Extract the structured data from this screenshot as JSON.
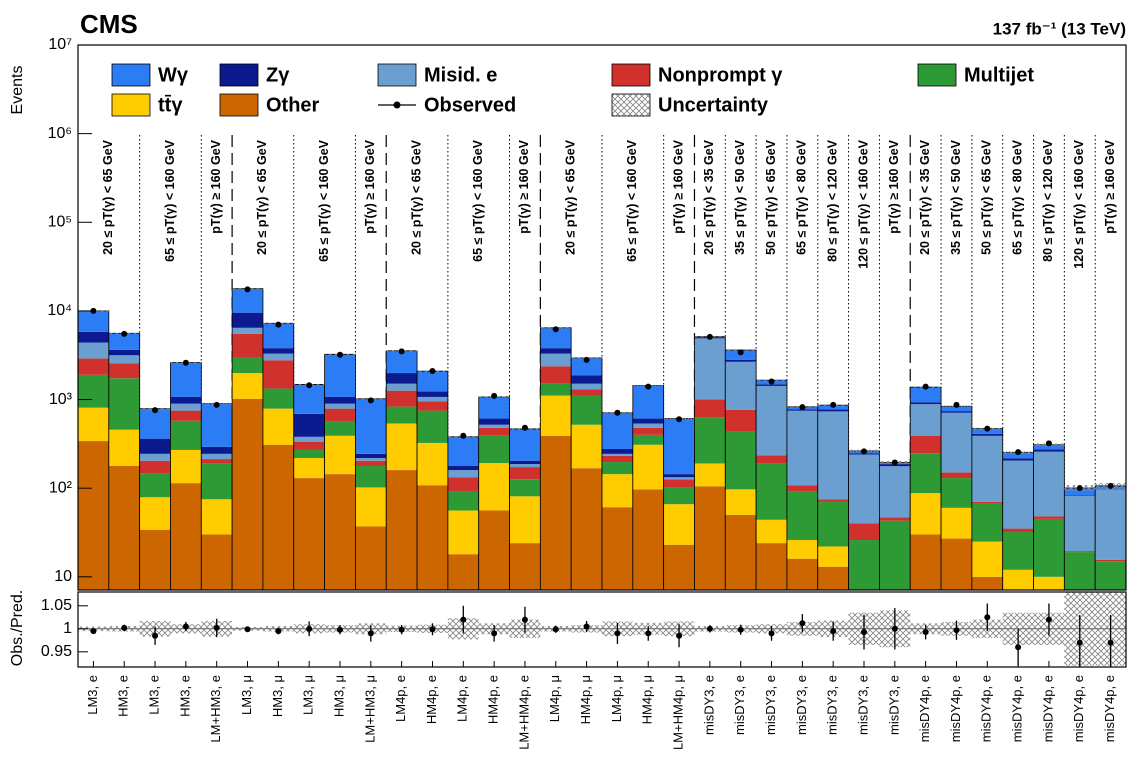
{
  "chart_data": {
    "type": "stacked_bar",
    "title": "CMS",
    "subtitle": "137 fb⁻¹ (13 TeV)",
    "ylabel": "Events",
    "log_scale": true,
    "categories": [
      "LM3, e",
      "HM3, e",
      "LM3, e",
      "HM3, e",
      "LM+HM3, e",
      "LM3, μ",
      "HM3, μ",
      "LM3, μ",
      "HM3, μ",
      "LM+HM3, μ",
      "LM4p, e",
      "HM4p, e",
      "LM4p, e",
      "HM4p, e",
      "LM+HM4p, e",
      "LM4p, μ",
      "HM4p, μ",
      "LM4p, μ",
      "HM4p, μ",
      "LM+HM4p, μ",
      "misDY3, e",
      "misDY3, e",
      "misDY3, e",
      "misDY3, e",
      "misDY3, e",
      "misDY3, e",
      "misDY3, e",
      "misDY4p, e",
      "misDY4p, e",
      "misDY4p, e",
      "misDY4p, e",
      "misDY4p, e",
      "misDY4p, e",
      "misDY4p, e"
    ],
    "region_labels": [
      "20 ≤ pT(γ) < 65 GeV",
      null,
      "65 ≤ pT(γ) < 160 GeV",
      null,
      "pT(γ) ≥ 160 GeV",
      "20 ≤ pT(γ) < 65 GeV",
      null,
      "65 ≤ pT(γ) < 160 GeV",
      null,
      "pT(γ) ≥ 160 GeV",
      "20 ≤ pT(γ) < 65 GeV",
      null,
      "65 ≤ pT(γ) < 160 GeV",
      null,
      "pT(γ) ≥ 160 GeV",
      "20 ≤ pT(γ) < 65 GeV",
      null,
      "65 ≤ pT(γ) < 160 GeV",
      null,
      "pT(γ) ≥ 160 GeV",
      "20 ≤ pT(γ) < 35 GeV",
      "35 ≤ pT(γ) < 50 GeV",
      "50 ≤ pT(γ) < 65 GeV",
      "65 ≤ pT(γ) < 80 GeV",
      "80 ≤ pT(γ) < 120 GeV",
      "120 ≤ pT(γ) < 160 GeV",
      "pT(γ) ≥ 160 GeV",
      "20 ≤ pT(γ) < 35 GeV",
      "35 ≤ pT(γ) < 50 GeV",
      "50 ≤ pT(γ) < 65 GeV",
      "65 ≤ pT(γ) < 80 GeV",
      "80 ≤ pT(γ) < 120 GeV",
      "120 ≤ pT(γ) < 160 GeV",
      "pT(γ) ≥ 160 GeV"
    ],
    "ylim": [
      7.1,
      10000000
    ],
    "yticks": [
      10,
      {
        "value": 100,
        "label": "10²"
      },
      {
        "value": 1000,
        "label": "10³"
      },
      {
        "value": 10000,
        "label": "10⁴"
      },
      {
        "value": 100000,
        "label": "10⁵"
      },
      {
        "value": 1000000,
        "label": "10⁶"
      },
      {
        "value": 10000000,
        "label": "10⁷"
      }
    ],
    "series": [
      {
        "name": "Other",
        "color": "#cc6600",
        "values": [
          340,
          178,
          34,
          114,
          30,
          1020,
          309,
          130,
          144,
          37,
          160,
          108,
          18,
          56,
          24,
          390,
          168,
          61,
          97,
          23,
          105,
          50,
          24,
          16,
          13,
          2,
          2,
          30,
          27,
          10,
          4,
          7,
          0.5,
          0.5
        ]
      },
      {
        "name": "tt̄γ",
        "color": "#ffcc00",
        "values": [
          470,
          279,
          45,
          156,
          45,
          970,
          481,
          89,
          246,
          65,
          377,
          216,
          38,
          136,
          57,
          720,
          352,
          83,
          212,
          43,
          85,
          47,
          20,
          10,
          9,
          1,
          1,
          58,
          33,
          15,
          8,
          3,
          0.5,
          0.5
        ]
      },
      {
        "name": "Multijet",
        "color": "#2e9a35",
        "values": [
          1090,
          1283,
          69,
          306,
          117,
          960,
          540,
          51,
          173,
          76,
          295,
          426,
          37,
          198,
          45,
          400,
          590,
          53,
          91,
          36,
          440,
          340,
          145,
          66,
          48,
          23,
          40,
          160,
          70,
          42,
          20,
          35,
          18,
          14
        ]
      },
      {
        "name": "Nonprompt γ",
        "color": "#d0312d",
        "values": [
          1000,
          830,
          56,
          174,
          21,
          2550,
          1440,
          62,
          227,
          26,
          428,
          205,
          40,
          90,
          47,
          860,
          190,
          35,
          80,
          24,
          370,
          330,
          46,
          16,
          5,
          14,
          4,
          140,
          20,
          3,
          3,
          3,
          0.5,
          0.5
        ]
      },
      {
        "name": "Misid. e",
        "color": "#6a9fd0",
        "values": [
          1500,
          590,
          40,
          150,
          31,
          950,
          530,
          48,
          110,
          15,
          250,
          115,
          27,
          40,
          14,
          930,
          210,
          12,
          57,
          7,
          3900,
          1900,
          1190,
          640,
          660,
          200,
          130,
          500,
          560,
          320,
          170,
          210,
          62,
          80
        ]
      },
      {
        "name": "Zγ",
        "color": "#0b1a8f",
        "values": [
          1400,
          470,
          118,
          170,
          49,
          3100,
          500,
          310,
          170,
          25,
          480,
          160,
          18,
          90,
          17,
          500,
          360,
          33,
          73,
          11,
          170,
          130,
          61,
          29,
          40,
          8,
          10,
          40,
          30,
          20,
          12,
          16,
          1,
          0.5
        ]
      },
      {
        "name": "Wγ",
        "color": "#2b7cf5",
        "values": [
          4200,
          1970,
          428,
          1550,
          607,
          8250,
          3450,
          790,
          2170,
          776,
          1560,
          860,
          202,
          460,
          262,
          2650,
          1080,
          433,
          830,
          466,
          50,
          820,
          170,
          53,
          90,
          15,
          8,
          450,
          100,
          60,
          35,
          35,
          18,
          10
        ]
      }
    ],
    "observed": {
      "name": "Observed",
      "values": [
        10000,
        5500,
        760,
        2600,
        870,
        17500,
        7000,
        1450,
        3200,
        980,
        3500,
        2100,
        390,
        1100,
        480,
        6200,
        2800,
        710,
        1400,
        600,
        5100,
        3400,
        1600,
        820,
        870,
        260,
        195,
        1400,
        870,
        470,
        255,
        320,
        100,
        106
      ]
    },
    "uncertainty": {
      "name": "Uncertainty",
      "values": [
        0.005,
        0.006,
        0.017,
        0.01,
        0.017,
        0.004,
        0.006,
        0.01,
        0.008,
        0.012,
        0.007,
        0.009,
        0.023,
        0.012,
        0.02,
        0.006,
        0.008,
        0.016,
        0.013,
        0.016,
        0.006,
        0.008,
        0.01,
        0.015,
        0.018,
        0.035,
        0.04,
        0.012,
        0.015,
        0.02,
        0.035,
        0.035,
        0.08,
        0.08
      ]
    },
    "ratio": {
      "ylabel": "Obs./Pred.",
      "ylim": [
        0.917,
        1.08
      ],
      "yticks": [
        0.95,
        1,
        1.05
      ],
      "values": [
        0.995,
        1.002,
        0.985,
        1.005,
        1.002,
        0.999,
        0.995,
        1,
        0.998,
        0.99,
        0.998,
        0.999,
        1.02,
        0.99,
        1.02,
        0.999,
        1.005,
        0.99,
        0.99,
        0.985,
        1.0,
        0.998,
        0.99,
        1.012,
        0.995,
        0.993,
        1.0,
        0.993,
        0.997,
        1.025,
        0.96,
        1.02,
        0.97,
        0.97
      ],
      "errors": [
        0.005,
        0.007,
        0.02,
        0.01,
        0.02,
        0.003,
        0.007,
        0.016,
        0.01,
        0.018,
        0.01,
        0.013,
        0.03,
        0.018,
        0.028,
        0.008,
        0.012,
        0.023,
        0.016,
        0.025,
        0.008,
        0.011,
        0.016,
        0.02,
        0.021,
        0.038,
        0.045,
        0.016,
        0.021,
        0.03,
        0.04,
        0.035,
        0.06,
        0.06
      ]
    }
  }
}
